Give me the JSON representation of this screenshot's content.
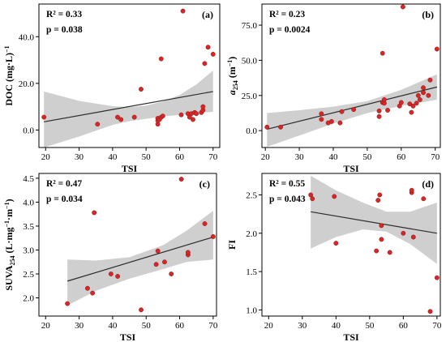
{
  "chart_data": [
    {
      "panel_label": "(a)",
      "type": "scatter",
      "xlabel": "TSI",
      "ylabel_main": "DOC (mg·L",
      "ylabel_sup": "−1",
      "ylabel_tail": ")",
      "xlim": [
        18,
        72
      ],
      "ylim": [
        -7.5,
        54
      ],
      "xticks": [
        20,
        30,
        40,
        50,
        60,
        70
      ],
      "yticks": [
        0.0,
        20.0,
        40.0
      ],
      "ytick_labels": [
        "0.0",
        "20.0",
        "40.0"
      ],
      "r2_text": "R² = 0.33",
      "p_text": "p = 0.038",
      "points": [
        [
          19.5,
          5.5
        ],
        [
          35.5,
          2.5
        ],
        [
          41.5,
          5.5
        ],
        [
          42.5,
          4.5
        ],
        [
          46.5,
          5.5
        ],
        [
          48.5,
          17.5
        ],
        [
          53.5,
          2.5
        ],
        [
          53.5,
          4.0
        ],
        [
          53.5,
          5.0
        ],
        [
          54,
          4.5
        ],
        [
          54.5,
          5.5
        ],
        [
          55,
          6.0
        ],
        [
          54.5,
          30.5
        ],
        [
          60.5,
          6.5
        ],
        [
          61,
          51
        ],
        [
          62.5,
          7.0
        ],
        [
          63,
          5.5
        ],
        [
          63.5,
          7.0
        ],
        [
          64,
          4.5
        ],
        [
          64.5,
          7.5
        ],
        [
          65,
          7.0
        ],
        [
          66.5,
          7.5
        ],
        [
          67,
          8.5
        ],
        [
          67,
          10.0
        ],
        [
          67.5,
          28.5
        ],
        [
          68.5,
          35.5
        ],
        [
          70,
          32.5
        ]
      ],
      "fit": {
        "x": [
          19.5,
          70
        ],
        "y": [
          3.5,
          16.5
        ]
      },
      "ci_upper": [
        [
          19.5,
          16.5
        ],
        [
          30,
          12.5
        ],
        [
          40,
          10.2
        ],
        [
          45,
          9.8
        ],
        [
          50,
          10.5
        ],
        [
          55,
          12.2
        ],
        [
          60,
          15.0
        ],
        [
          65,
          19.5
        ],
        [
          70,
          25.5
        ]
      ],
      "ci_lower": [
        [
          19.5,
          -7.5
        ],
        [
          30,
          -2.8
        ],
        [
          40,
          2.2
        ],
        [
          45,
          3.8
        ],
        [
          50,
          4.8
        ],
        [
          55,
          5.8
        ],
        [
          60,
          6.5
        ],
        [
          65,
          7.3
        ],
        [
          70,
          7.8
        ]
      ]
    },
    {
      "panel_label": "(b)",
      "type": "scatter",
      "xlabel": "TSI",
      "ylabel_main": "a",
      "ylabel_sub": "254",
      "ylabel_tail": " (m",
      "ylabel_sup": "−1",
      "ylabel_end": ")",
      "xlim": [
        19,
        71.5
      ],
      "ylim": [
        -12,
        90
      ],
      "xticks": [
        20,
        30,
        40,
        50,
        60,
        70
      ],
      "yticks": [
        0.0,
        25.0,
        50.0,
        75.0
      ],
      "ytick_labels": [
        "0.0",
        "25.0",
        "50.0",
        "75.0"
      ],
      "r2_text": "R² = 0.23",
      "p_text": "p = 0.0024",
      "points": [
        [
          20.5,
          2.5
        ],
        [
          24.5,
          2.5
        ],
        [
          36.5,
          8.0
        ],
        [
          36.5,
          12.0
        ],
        [
          38.5,
          5.5
        ],
        [
          39.5,
          6.5
        ],
        [
          42,
          5.5
        ],
        [
          42.5,
          13.5
        ],
        [
          46,
          15.0
        ],
        [
          53.5,
          10.0
        ],
        [
          53.5,
          14.0
        ],
        [
          54.5,
          20.0
        ],
        [
          55,
          19.5
        ],
        [
          55,
          22.0
        ],
        [
          54.5,
          55.0
        ],
        [
          56,
          14.5
        ],
        [
          59.5,
          17.5
        ],
        [
          60,
          20.0
        ],
        [
          60.5,
          88.0
        ],
        [
          62.5,
          19.0
        ],
        [
          63,
          13.0
        ],
        [
          63.5,
          17.5
        ],
        [
          64.5,
          19.5
        ],
        [
          65,
          25.0
        ],
        [
          65.5,
          22.0
        ],
        [
          66.5,
          27.0
        ],
        [
          66.5,
          30.5
        ],
        [
          68,
          25.0
        ],
        [
          68.5,
          36.0
        ],
        [
          70.5,
          58.0
        ]
      ],
      "fit": {
        "x": [
          20.5,
          70.5
        ],
        "y": [
          1.0,
          31.0
        ]
      },
      "ci_upper": [
        [
          20.5,
          12.5
        ],
        [
          30,
          14.5
        ],
        [
          40,
          17.0
        ],
        [
          50,
          21.0
        ],
        [
          60,
          29.0
        ],
        [
          70.5,
          40.0
        ]
      ],
      "ci_lower": [
        [
          20.5,
          -11.5
        ],
        [
          30,
          -3.5
        ],
        [
          40,
          5.0
        ],
        [
          50,
          12.5
        ],
        [
          60,
          17.5
        ],
        [
          70.5,
          22.0
        ]
      ]
    },
    {
      "panel_label": "(c)",
      "type": "scatter",
      "xlabel": "TSI",
      "ylabel_main": "SUVA",
      "ylabel_sub": "254",
      "ylabel_tail": " (L·mg",
      "ylabel_sup": "−1",
      "ylabel_end": "·m",
      "ylabel_sup2": "−1",
      "ylabel_end2": ")",
      "xlim": [
        18,
        71
      ],
      "ylim": [
        1.62,
        4.6
      ],
      "xticks": [
        20,
        30,
        40,
        50,
        60,
        70
      ],
      "yticks": [
        2.0,
        2.5,
        3.0,
        3.5,
        4.0,
        4.5
      ],
      "ytick_labels": [
        "2.0",
        "2.5",
        "3.0",
        "3.5",
        "4.0",
        "4.5"
      ],
      "r2_text": "R² = 0.47",
      "p_text": "p = 0.034",
      "points": [
        [
          26.5,
          1.88
        ],
        [
          32.5,
          2.2
        ],
        [
          34,
          2.1
        ],
        [
          34.5,
          3.78
        ],
        [
          39.5,
          2.5
        ],
        [
          41.5,
          2.45
        ],
        [
          48.5,
          1.75
        ],
        [
          53,
          2.7
        ],
        [
          53.5,
          2.98
        ],
        [
          55.5,
          2.75
        ],
        [
          57.5,
          2.5
        ],
        [
          60.5,
          4.48
        ],
        [
          62.5,
          2.9
        ],
        [
          62.5,
          2.95
        ],
        [
          67.5,
          3.55
        ],
        [
          70,
          3.28
        ]
      ],
      "fit": {
        "x": [
          26.5,
          70
        ],
        "y": [
          2.35,
          3.27
        ]
      },
      "ci_upper": [
        [
          26.5,
          2.8
        ],
        [
          35,
          2.78
        ],
        [
          45,
          2.85
        ],
        [
          55,
          3.1
        ],
        [
          62,
          3.4
        ],
        [
          70,
          3.82
        ]
      ],
      "ci_lower": [
        [
          26.5,
          1.84
        ],
        [
          35,
          2.15
        ],
        [
          45,
          2.4
        ],
        [
          55,
          2.6
        ],
        [
          62,
          2.75
        ],
        [
          70,
          2.8
        ]
      ]
    },
    {
      "panel_label": "(d)",
      "type": "scatter",
      "xlabel": "TSI",
      "ylabel_main": "FI",
      "xlim": [
        18,
        71
      ],
      "ylim": [
        0.92,
        2.78
      ],
      "xticks": [
        20,
        30,
        40,
        50,
        60,
        70
      ],
      "yticks": [
        1.0,
        1.5,
        2.0,
        2.5
      ],
      "ytick_labels": [
        "1.0",
        "1.5",
        "2.0",
        "2.5"
      ],
      "r2_text": "R² = 0.55",
      "p_text": "p = 0.043",
      "points": [
        [
          32.5,
          2.5
        ],
        [
          33,
          2.45
        ],
        [
          39.5,
          2.48
        ],
        [
          40,
          1.87
        ],
        [
          52,
          1.77
        ],
        [
          52.5,
          2.43
        ],
        [
          53,
          2.5
        ],
        [
          53.5,
          1.92
        ],
        [
          53.5,
          2.1
        ],
        [
          56,
          1.75
        ],
        [
          60,
          2.0
        ],
        [
          62.5,
          2.53
        ],
        [
          62.5,
          2.56
        ],
        [
          63,
          1.95
        ],
        [
          66,
          2.45
        ],
        [
          68,
          0.98
        ],
        [
          70,
          1.42
        ]
      ],
      "fit": {
        "x": [
          32.5,
          70
        ],
        "y": [
          2.28,
          2.0
        ]
      },
      "ci_upper": [
        [
          32.5,
          2.75
        ],
        [
          40,
          2.56
        ],
        [
          48,
          2.4
        ],
        [
          55,
          2.28
        ],
        [
          62,
          2.28
        ],
        [
          70,
          2.4
        ]
      ],
      "ci_lower": [
        [
          32.5,
          1.8
        ],
        [
          40,
          1.95
        ],
        [
          48,
          2.05
        ],
        [
          55,
          2.02
        ],
        [
          62,
          1.86
        ],
        [
          70,
          1.6
        ]
      ]
    }
  ]
}
